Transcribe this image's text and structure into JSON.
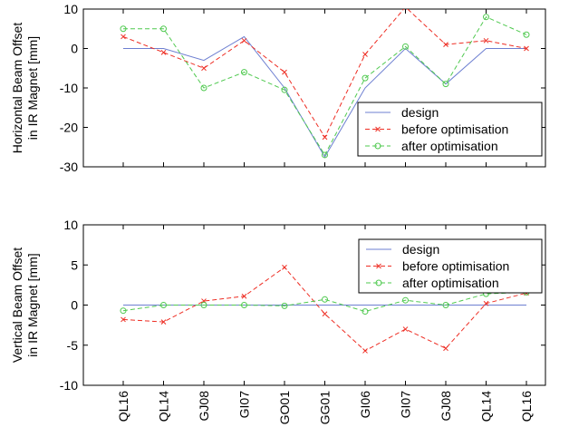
{
  "chart_data": [
    {
      "type": "line",
      "ylabel": [
        "Horizontal Beam Offset",
        "in IR Magnet [mm]"
      ],
      "ylim": [
        -30,
        10
      ],
      "yticks": [
        -30,
        -20,
        -10,
        0,
        10
      ],
      "categories": [
        "QL16",
        "QL14",
        "GJ08",
        "GI07",
        "GO01",
        "GG01",
        "GI06",
        "GI07",
        "GJ08",
        "QL14",
        "QL16"
      ],
      "legend_position": "lower-right",
      "grid": false,
      "series": [
        {
          "name": "design",
          "color": "#6d7fd1",
          "dash": "solid",
          "marker": "none",
          "values": [
            0,
            0,
            -3,
            3,
            -10,
            -27.5,
            -10,
            0,
            -9,
            0,
            0
          ]
        },
        {
          "name": "before optimisation",
          "color": "#ee2e24",
          "dash": "dashed",
          "marker": "x",
          "values": [
            3,
            -1,
            -5,
            2,
            -6,
            -22.5,
            -1.5,
            10.5,
            1,
            2,
            0
          ]
        },
        {
          "name": "after optimisation",
          "color": "#4fc94f",
          "dash": "dashed",
          "marker": "o",
          "values": [
            5,
            5,
            -10,
            -6,
            -10.5,
            -27,
            -7.5,
            0.5,
            -9,
            8,
            3.5
          ]
        }
      ]
    },
    {
      "type": "line",
      "ylabel": [
        "Vertical Beam Offset",
        "in IR Magnet [mm]"
      ],
      "ylim": [
        -10,
        10
      ],
      "yticks": [
        -10,
        -5,
        0,
        5,
        10
      ],
      "categories": [
        "QL16",
        "QL14",
        "GJ08",
        "GI07",
        "GO01",
        "GG01",
        "GI06",
        "GI07",
        "GJ08",
        "QL14",
        "QL16"
      ],
      "legend_position": "upper-right",
      "grid": false,
      "series": [
        {
          "name": "design",
          "color": "#6d7fd1",
          "dash": "solid",
          "marker": "none",
          "values": [
            0,
            0,
            0,
            0,
            0,
            0,
            0,
            0,
            0,
            0,
            0
          ]
        },
        {
          "name": "before optimisation",
          "color": "#ee2e24",
          "dash": "dashed",
          "marker": "x",
          "values": [
            -1.8,
            -2.1,
            0.5,
            1.1,
            4.7,
            -1.1,
            -5.7,
            -3.0,
            -5.4,
            0.2,
            1.5
          ]
        },
        {
          "name": "after optimisation",
          "color": "#4fc94f",
          "dash": "dashed",
          "marker": "o",
          "values": [
            -0.7,
            0.0,
            0.0,
            0.0,
            -0.1,
            0.7,
            -0.8,
            0.6,
            0.0,
            1.4,
            1.6
          ]
        }
      ]
    }
  ]
}
